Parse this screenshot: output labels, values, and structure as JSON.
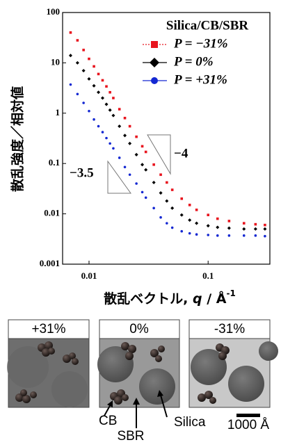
{
  "chart_data": {
    "type": "scatter",
    "x": [
      0.007,
      0.008,
      0.009,
      0.01,
      0.011,
      0.012,
      0.013,
      0.014,
      0.015,
      0.016,
      0.018,
      0.02,
      0.022,
      0.025,
      0.028,
      0.03,
      0.035,
      0.04,
      0.045,
      0.05,
      0.06,
      0.07,
      0.08,
      0.1,
      0.12,
      0.15,
      0.2,
      0.25,
      0.3
    ],
    "series": [
      {
        "name": "P = −31%",
        "color": "#e8141e",
        "marker": "square",
        "values": [
          40,
          28,
          18,
          12,
          8.5,
          6,
          4.5,
          3.4,
          2.6,
          2.0,
          1.2,
          0.8,
          0.55,
          0.34,
          0.22,
          0.17,
          0.095,
          0.06,
          0.042,
          0.03,
          0.02,
          0.015,
          0.012,
          0.0095,
          0.008,
          0.0072,
          0.0065,
          0.0062,
          0.006
        ]
      },
      {
        "name": "P =   0%",
        "color": "#000000",
        "marker": "diamond",
        "values": [
          14,
          10,
          7,
          4.8,
          3.5,
          2.6,
          2.0,
          1.5,
          1.15,
          0.9,
          0.55,
          0.36,
          0.25,
          0.15,
          0.095,
          0.075,
          0.042,
          0.026,
          0.018,
          0.013,
          0.0095,
          0.0075,
          0.0065,
          0.0058,
          0.0054,
          0.0052,
          0.005,
          0.005,
          0.005
        ]
      },
      {
        "name": "P = +31%",
        "color": "#1428d2",
        "marker": "circle",
        "values": [
          3.7,
          2.4,
          1.6,
          1.1,
          0.75,
          0.55,
          0.42,
          0.32,
          0.25,
          0.2,
          0.13,
          0.085,
          0.06,
          0.04,
          0.027,
          0.021,
          0.013,
          0.0085,
          0.0065,
          0.0053,
          0.0045,
          0.0041,
          0.0039,
          0.0038,
          0.0037,
          0.0037,
          0.0037,
          0.0037,
          0.0036
        ]
      }
    ],
    "legend_title": "Silica/CB/SBR",
    "xlog": true,
    "ylog": true,
    "xlim": [
      0.006,
      0.33
    ],
    "ylim": [
      0.001,
      100
    ],
    "xticks": [
      0.01,
      0.1
    ],
    "yticks": [
      0.001,
      0.01,
      0.1,
      1,
      10,
      100
    ],
    "ylabel": "散乱強度／相対値",
    "xlabel": {
      "text": "散乱ベクトル, ",
      "var": "q",
      "unit": " / Å",
      "sup": "-1"
    },
    "annotations": [
      "−4",
      "−3.5"
    ]
  },
  "illustration": {
    "panels": [
      "+31%",
      "0%",
      "-31%"
    ],
    "labels": [
      "CB",
      "SBR",
      "Silica"
    ],
    "scale": "1000 Å"
  }
}
